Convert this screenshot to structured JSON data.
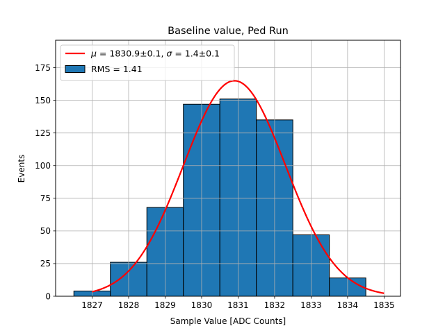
{
  "chart_data": {
    "type": "bar",
    "title": "Baseline value, Ped Run",
    "xlabel": "Sample Value [ADC Counts]",
    "ylabel": "Events",
    "xlim": [
      1826.0,
      1835.45
    ],
    "ylim": [
      0,
      196
    ],
    "grid": true,
    "legend_placement": "top-left",
    "xticks": [
      1827,
      1828,
      1829,
      1830,
      1831,
      1832,
      1833,
      1834,
      1835
    ],
    "yticks": [
      0,
      25,
      50,
      75,
      100,
      125,
      150,
      175
    ],
    "bin_edges": [
      1826.5,
      1827.5,
      1828.5,
      1829.5,
      1830.5,
      1831.5,
      1832.5,
      1833.5,
      1834.5
    ],
    "values": [
      4,
      26,
      68,
      147,
      151,
      135,
      47,
      14
    ],
    "series": [
      {
        "name": "RMS = 1.41",
        "kind": "histogram",
        "color": "#1f77b4"
      },
      {
        "name_prefix_mu": "μ",
        "name_value_mu": " = 1830.9±0.1, ",
        "name_prefix_sigma": "σ",
        "name_value_sigma": " = 1.4±0.1",
        "kind": "gaussian_fit",
        "color": "#ff0000",
        "amplitude": 165,
        "mu": 1830.9,
        "sigma": 1.4,
        "x_range": [
          1827,
          1835
        ]
      }
    ]
  }
}
